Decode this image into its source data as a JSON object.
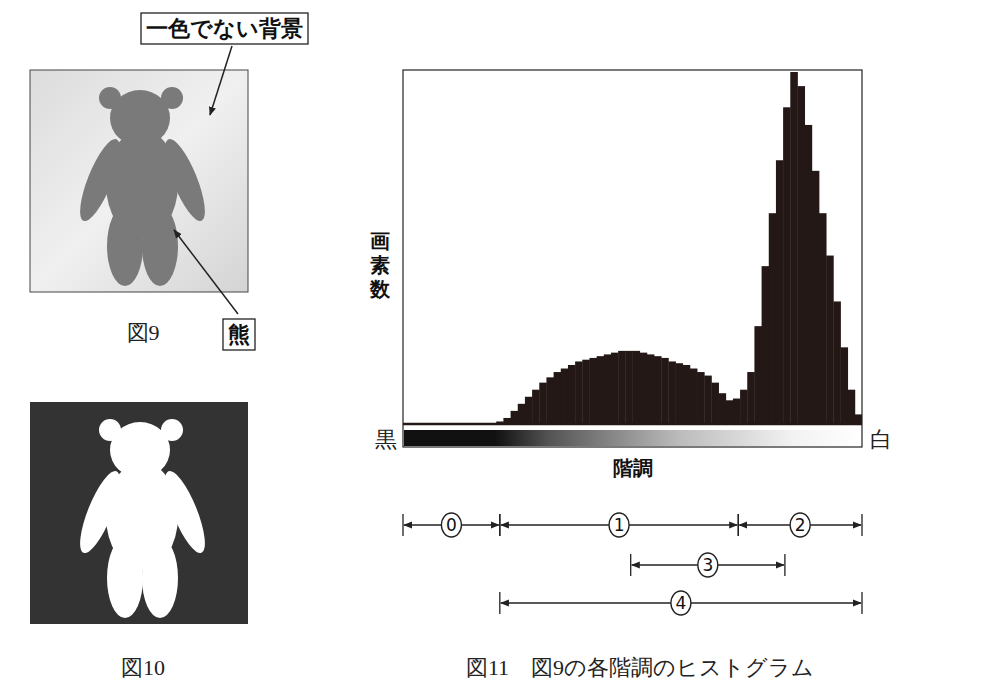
{
  "figures": [
    {
      "caption": "図9",
      "callouts": [
        "一色でない背景",
        "熊"
      ]
    },
    {
      "caption": "図10"
    }
  ],
  "chart_data": {
    "type": "histogram",
    "title": "図11　図9の各階調のヒストグラム",
    "xlabel": "階調",
    "ylabel": "画素数",
    "color": "#231815",
    "xlim": [
      0,
      256
    ],
    "xticks": [
      {
        "value": 0,
        "label": "黒"
      },
      {
        "value": 256,
        "label": "白"
      }
    ],
    "ylim": [
      0,
      100
    ],
    "tick_labels": "x",
    "grid": false,
    "bins": [
      0,
      4,
      8,
      12,
      16,
      20,
      24,
      28,
      32,
      36,
      40,
      44,
      48,
      52,
      56,
      60,
      64,
      68,
      72,
      76,
      80,
      84,
      88,
      92,
      96,
      100,
      104,
      108,
      112,
      116,
      120,
      124,
      128,
      132,
      136,
      140,
      144,
      148,
      152,
      156,
      160,
      164,
      168,
      172,
      176,
      180,
      184,
      188,
      192,
      196,
      200,
      204,
      208,
      212,
      216,
      220,
      224,
      228,
      232,
      236,
      240,
      244,
      248,
      252,
      256
    ],
    "values": [
      0,
      0,
      0,
      0,
      0,
      0,
      0,
      0,
      0,
      0,
      0,
      0,
      0,
      1,
      2,
      4,
      6,
      8,
      10,
      12,
      13.5,
      15,
      16,
      17,
      18,
      18.5,
      19,
      19.5,
      20,
      20.5,
      21,
      21,
      21,
      20.5,
      20,
      19.5,
      19,
      18,
      17.5,
      17,
      16,
      15,
      14,
      12,
      9,
      7,
      7.5,
      10,
      15,
      28,
      45,
      60,
      75,
      90,
      100,
      96,
      85,
      72,
      60,
      48,
      35,
      22,
      10,
      3
    ],
    "ranges": [
      {
        "label": "0",
        "from": 0,
        "to": 54
      },
      {
        "label": "1",
        "from": 54,
        "to": 187
      },
      {
        "label": "2",
        "from": 187,
        "to": 256
      },
      {
        "label": "3",
        "from": 127,
        "to": 213
      },
      {
        "label": "4",
        "from": 54,
        "to": 256
      }
    ]
  }
}
